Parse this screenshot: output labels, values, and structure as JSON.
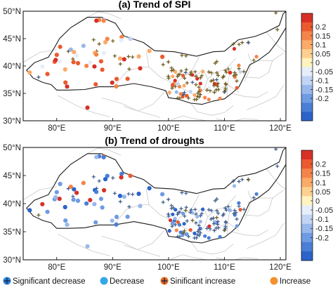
{
  "figure": {
    "legend": {
      "items": [
        {
          "label": "Significant decrease",
          "symbol": "plus",
          "color": "#2b7fd6"
        },
        {
          "label": "Decrease",
          "symbol": "dot",
          "color": "#35a7e8"
        },
        {
          "label": "Sinificant increase",
          "symbol": "plus",
          "color": "#e4671c"
        },
        {
          "label": "Increase",
          "symbol": "dot",
          "color": "#f2902e"
        }
      ]
    },
    "colorbar": {
      "ticks": [
        "0.2",
        "0.15",
        "0.1",
        "0.05",
        "0",
        "-0.05",
        "-0.1",
        "-0.15",
        "-0.2"
      ],
      "colors": [
        "#d73027",
        "#eb5a2f",
        "#f4844a",
        "#fbaa69",
        "#fdd08f",
        "#fff3bf",
        "#e6eefb",
        "#c2d4f4",
        "#98b8ec",
        "#6e9be2",
        "#4a7fd6",
        "#2b63c9"
      ]
    }
  },
  "chart_data": [
    {
      "type": "scatter",
      "title": "(a) Trend of SPI",
      "x_ticks": [
        "80°E",
        "90°E",
        "100°E",
        "110°E",
        "120°E"
      ],
      "y_ticks": [
        "50°N",
        "45°N",
        "40°N",
        "35°N",
        "30°N"
      ],
      "xlim": [
        74,
        121
      ],
      "ylim": [
        30,
        50
      ],
      "dominant_sign": "increase"
    },
    {
      "type": "scatter",
      "title": "(b) Trend of droughts",
      "x_ticks": [
        "80°E",
        "90°E",
        "100°E",
        "110°E",
        "120°E"
      ],
      "y_ticks": [
        "50°N",
        "45°N",
        "40°N",
        "35°N",
        "30°N"
      ],
      "xlim": [
        74,
        121
      ],
      "ylim": [
        30,
        50
      ],
      "dominant_sign": "decrease"
    }
  ]
}
